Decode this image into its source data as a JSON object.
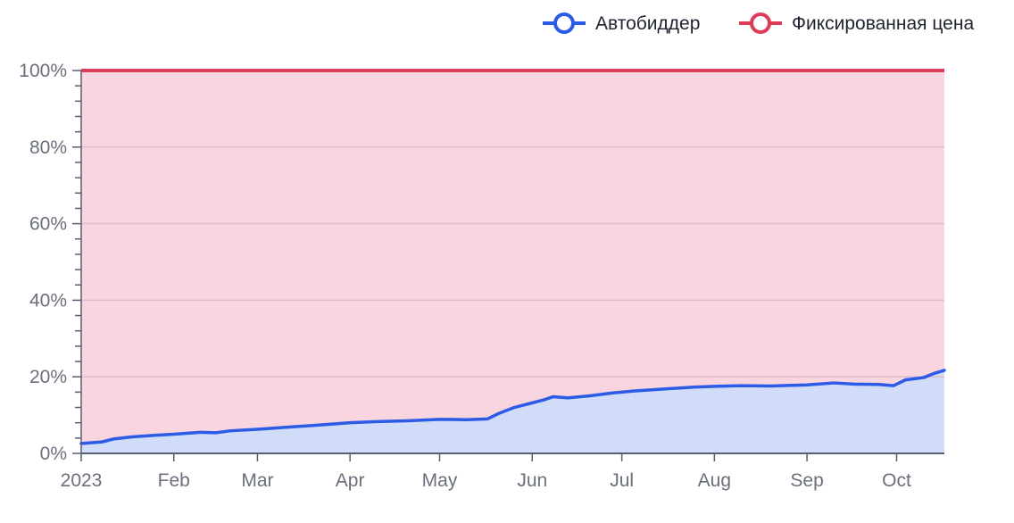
{
  "chart_data": {
    "type": "area",
    "title": "",
    "xlabel": "",
    "ylabel": "",
    "x_ticks": [
      "2023",
      "Feb",
      "Mar",
      "Apr",
      "May",
      "Jun",
      "Jul",
      "Aug",
      "Sep",
      "Oct"
    ],
    "y_ticks": [
      "0%",
      "20%",
      "40%",
      "60%",
      "80%",
      "100%"
    ],
    "xlim": [
      "2023-01-01",
      "2023-10-17"
    ],
    "ylim": [
      0,
      100
    ],
    "grid": "horizontal",
    "legend_position": "top-right",
    "stacked_to_100": true,
    "series": [
      {
        "name": "Автобиддер",
        "color": "#2c5be6",
        "fill": "#d1dcf8",
        "points": [
          [
            "2023-01-01",
            2.6
          ],
          [
            "2023-01-08",
            3.0
          ],
          [
            "2023-01-12",
            3.8
          ],
          [
            "2023-01-18",
            4.3
          ],
          [
            "2023-01-25",
            4.7
          ],
          [
            "2023-02-01",
            5.0
          ],
          [
            "2023-02-10",
            5.5
          ],
          [
            "2023-02-15",
            5.4
          ],
          [
            "2023-02-20",
            5.9
          ],
          [
            "2023-03-01",
            6.3
          ],
          [
            "2023-03-10",
            6.8
          ],
          [
            "2023-03-20",
            7.3
          ],
          [
            "2023-04-01",
            8.0
          ],
          [
            "2023-04-10",
            8.3
          ],
          [
            "2023-04-20",
            8.5
          ],
          [
            "2023-05-01",
            8.9
          ],
          [
            "2023-05-10",
            8.8
          ],
          [
            "2023-05-17",
            9.0
          ],
          [
            "2023-05-21",
            10.5
          ],
          [
            "2023-05-26",
            12.0
          ],
          [
            "2023-06-01",
            13.2
          ],
          [
            "2023-06-05",
            14.0
          ],
          [
            "2023-06-08",
            14.8
          ],
          [
            "2023-06-13",
            14.5
          ],
          [
            "2023-06-20",
            15.0
          ],
          [
            "2023-06-28",
            15.8
          ],
          [
            "2023-07-05",
            16.3
          ],
          [
            "2023-07-15",
            16.8
          ],
          [
            "2023-07-25",
            17.3
          ],
          [
            "2023-08-01",
            17.5
          ],
          [
            "2023-08-10",
            17.7
          ],
          [
            "2023-08-20",
            17.6
          ],
          [
            "2023-09-01",
            17.9
          ],
          [
            "2023-09-10",
            18.4
          ],
          [
            "2023-09-17",
            18.1
          ],
          [
            "2023-09-25",
            18.0
          ],
          [
            "2023-09-30",
            17.7
          ],
          [
            "2023-10-04",
            19.2
          ],
          [
            "2023-10-10",
            19.8
          ],
          [
            "2023-10-14",
            21.0
          ],
          [
            "2023-10-17",
            21.7
          ]
        ]
      },
      {
        "name": "Фиксированная цена",
        "color": "#de3a5a",
        "fill": "#f9d6df",
        "constant": 100
      }
    ]
  }
}
